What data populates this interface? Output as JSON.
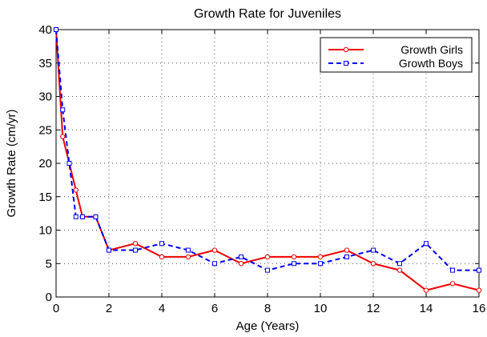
{
  "chart_data": {
    "type": "line",
    "title": "Growth Rate for Juveniles",
    "xlabel": "Age (Years)",
    "ylabel": "Growth Rate (cm/yr)",
    "xlim": [
      0,
      16
    ],
    "ylim": [
      0,
      40
    ],
    "xticks": [
      0,
      2,
      4,
      6,
      8,
      10,
      12,
      14,
      16
    ],
    "yticks": [
      0,
      5,
      10,
      15,
      20,
      25,
      30,
      35,
      40
    ],
    "grid": true,
    "legend_position": "top-right",
    "series": [
      {
        "name": "Growth Girls",
        "color": "#ee0000",
        "line_style": "solid",
        "marker": "circle",
        "x": [
          0,
          0.25,
          0.75,
          1,
          1.5,
          2,
          3,
          4,
          5,
          6,
          7,
          8,
          9,
          10,
          11,
          12,
          13,
          14,
          15,
          16
        ],
        "y": [
          40,
          24,
          16,
          12,
          12,
          7,
          8,
          6,
          6,
          7,
          5,
          6,
          6,
          6,
          7,
          5,
          4,
          1,
          2,
          1
        ]
      },
      {
        "name": "Growth Boys",
        "color": "#0000ee",
        "line_style": "dashed",
        "marker": "square",
        "x": [
          0,
          0.25,
          0.5,
          0.75,
          1,
          1.5,
          2,
          3,
          4,
          5,
          6,
          7,
          8,
          9,
          10,
          11,
          12,
          13,
          14,
          15,
          16
        ],
        "y": [
          40,
          28,
          20,
          12,
          12,
          12,
          7,
          7,
          8,
          7,
          5,
          6,
          4,
          5,
          5,
          6,
          7,
          5,
          8,
          4,
          4
        ]
      }
    ]
  }
}
